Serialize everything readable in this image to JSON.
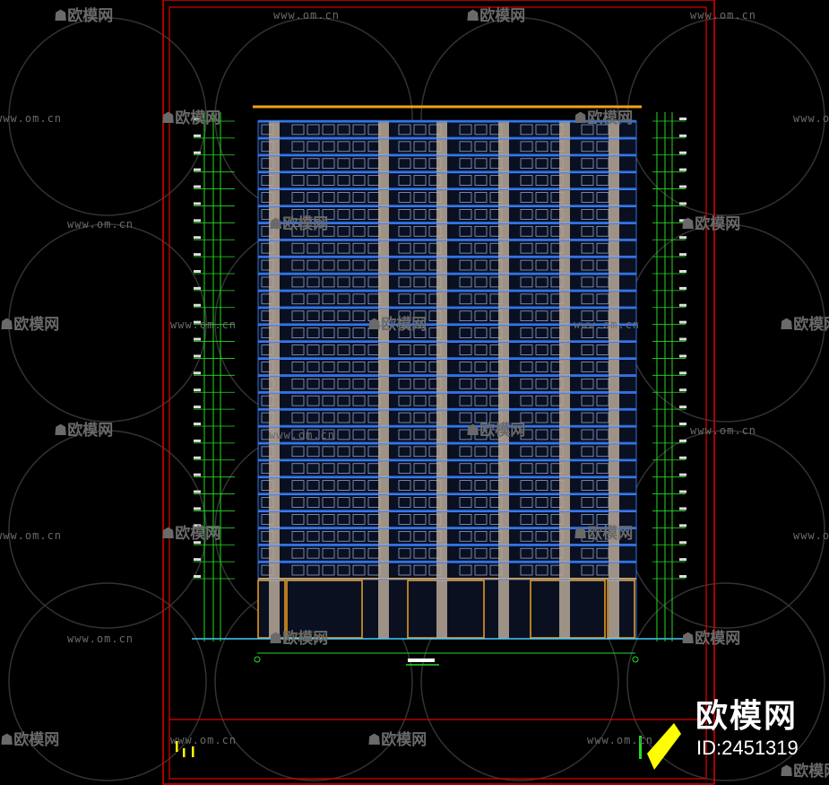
{
  "watermark": {
    "url": "www.om.cn",
    "logo": "欧模网"
  },
  "brand": {
    "name": "欧模网",
    "id": "ID:2451319"
  },
  "colors": {
    "frame": "#e00000",
    "wall": "#2f6fe0",
    "pier": "#b8a898",
    "dim": "#22dd22",
    "roof": "#f0a020",
    "title": "#ffff00"
  }
}
